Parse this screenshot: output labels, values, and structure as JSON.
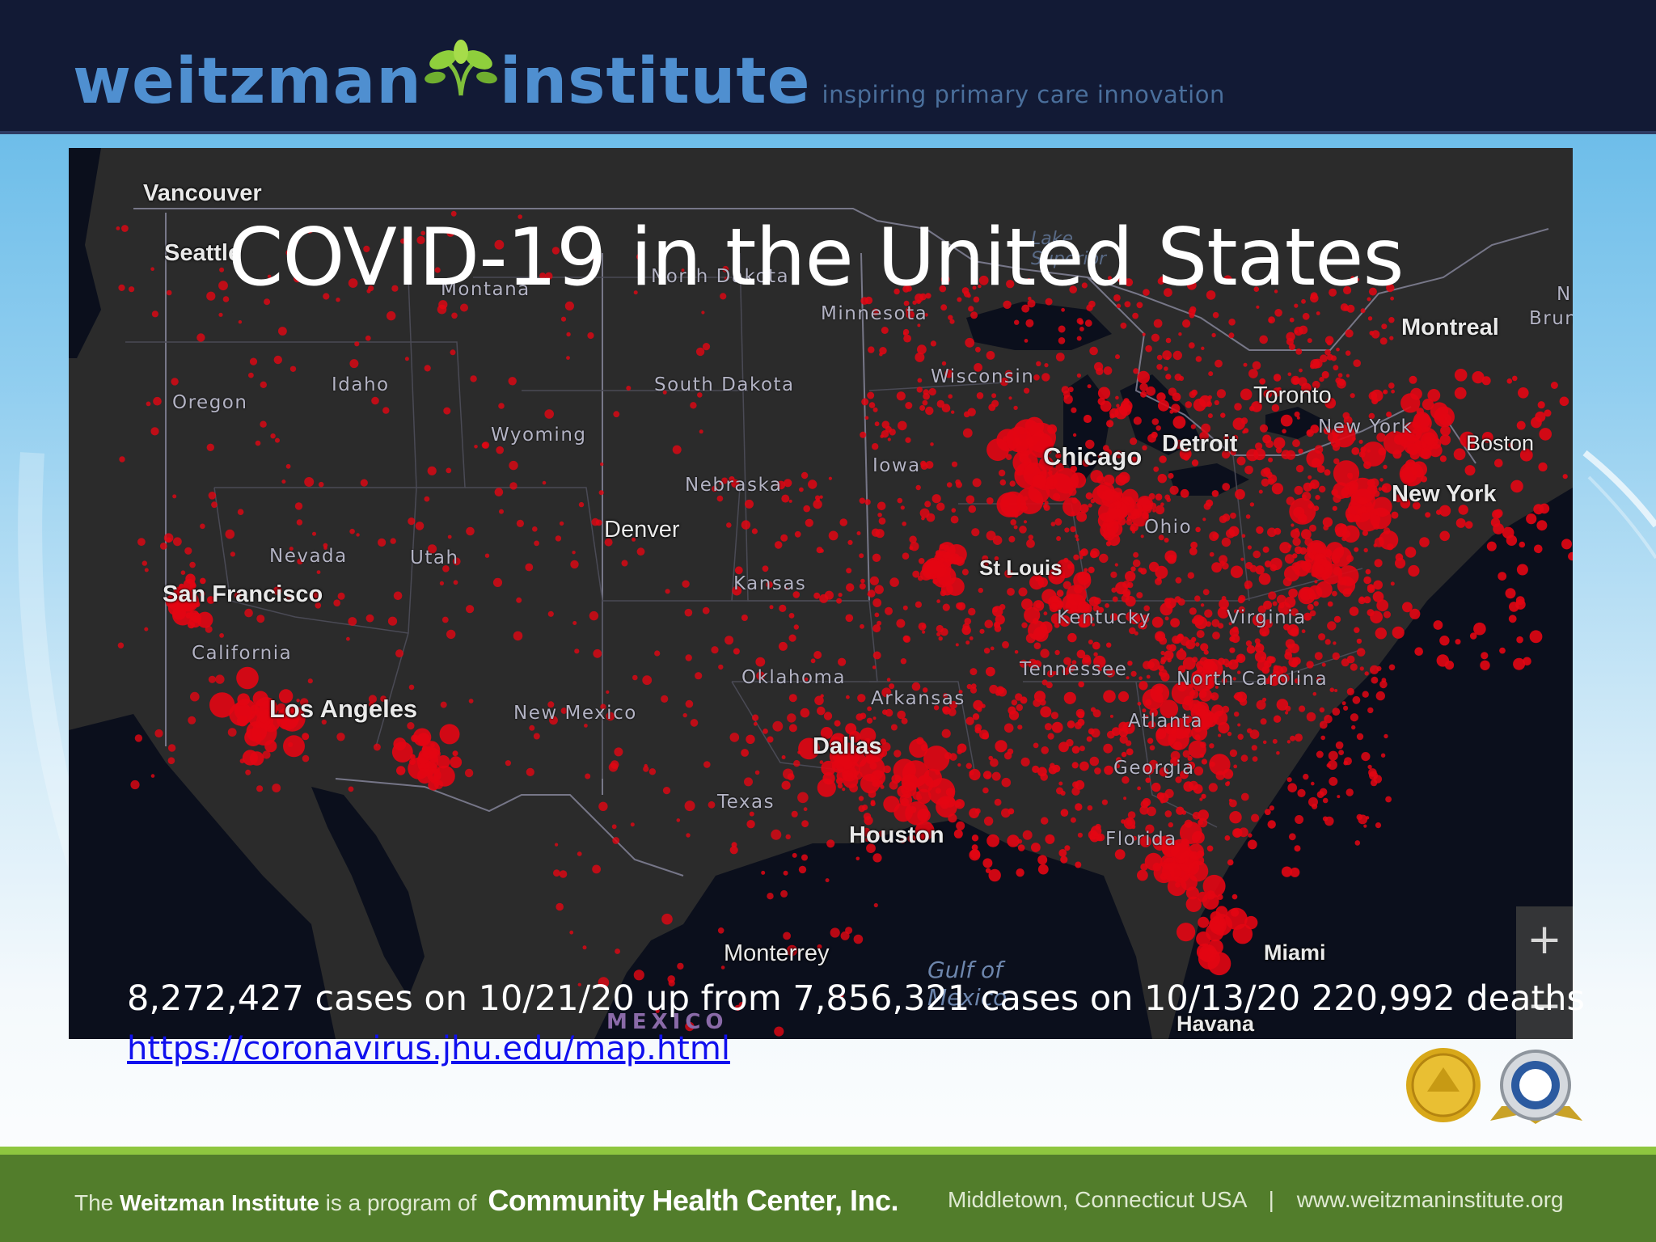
{
  "header": {
    "brand_left": "weitzman",
    "brand_right": "institute",
    "tagline": "inspiring primary care innovation"
  },
  "slide": {
    "title": "COVID-19 in the United States",
    "stats": "8,272,427 cases on 10/21/20 up from 7,856,321 cases on 10/13/20  220,992 deaths",
    "source_link": "https://coronavirus.jhu.edu/map.html"
  },
  "map": {
    "cities": [
      "Vancouver",
      "Seattle",
      "Montreal",
      "Toronto",
      "Boston",
      "New York",
      "Detroit",
      "Chicago",
      "Denver",
      "San Francisco",
      "Los Angeles",
      "St Louis",
      "Dallas",
      "Houston",
      "Monterrey",
      "Miami",
      "Havana"
    ],
    "states": [
      "Montana",
      "North Dakota",
      "Minnesota",
      "Oregon",
      "Idaho",
      "South Dakota",
      "Wisconsin",
      "Wyoming",
      "Iowa",
      "Nebraska",
      "Nevada",
      "Utah",
      "Kansas",
      "California",
      "Oklahoma",
      "Arkansas",
      "Tennessee",
      "Kentucky",
      "Ohio",
      "Virginia",
      "North Carolina",
      "New York",
      "New Mexico",
      "Texas",
      "Atlanta",
      "Georgia",
      "Florida"
    ],
    "water": [
      "Gulf of Mexico",
      "Lake Superior"
    ],
    "country": "MEXICO",
    "edge_text": [
      "N",
      "Brun"
    ],
    "zoom": {
      "in": "+",
      "out": "−"
    },
    "colors": {
      "land": "#2b2b2b",
      "water": "#0b0f1c",
      "dots": "#e30613",
      "borders": "#8a8aa0"
    }
  },
  "footer": {
    "prefix": "The",
    "org": "Weitzman Institute",
    "middle": "is a program of",
    "parent": "Community Health Center, Inc.",
    "location": "Middletown, Connecticut USA",
    "separator": "|",
    "website": "www.weitzmaninstitute.org"
  }
}
